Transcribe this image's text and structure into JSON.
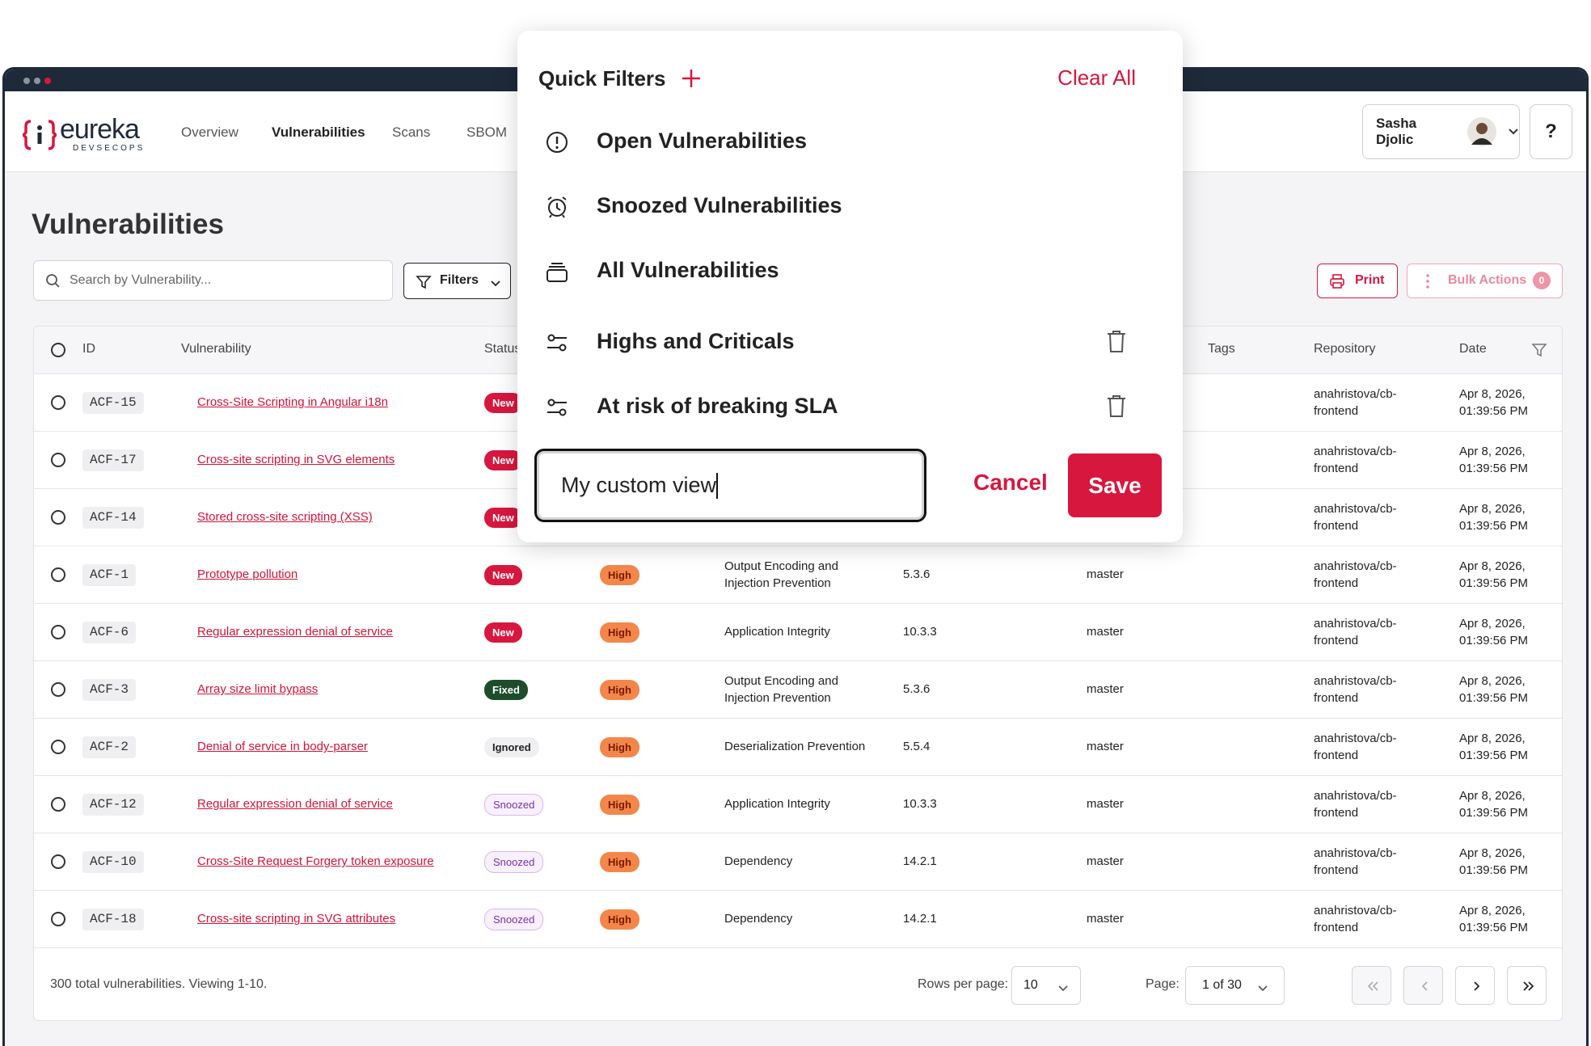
{
  "nav": {
    "logo": "eureka",
    "logo_sub": "DEVSECOPS",
    "links": [
      "Overview",
      "Vulnerabilities",
      "Scans",
      "SBOM"
    ],
    "active_link": 1,
    "user": "Sasha Djolic",
    "help": "?"
  },
  "page": {
    "title": "Vulnerabilities",
    "search_placeholder": "Search by Vulnerability...",
    "filters": "Filters",
    "print": "Print",
    "bulk_actions": "Bulk Actions",
    "bulk_count": "0"
  },
  "table": {
    "headers": [
      "ID",
      "Vulnerability",
      "Status",
      "Tags",
      "Repository",
      "Date"
    ],
    "rows": [
      {
        "id": "ACF-15",
        "vulnerability": "Cross-Site Scripting in Angular i18n",
        "status": "New",
        "repository": "anahristova/cb-frontend",
        "date": "Apr 8, 2026, 01:39:56 PM"
      },
      {
        "id": "ACF-17",
        "vulnerability": "Cross-site scripting in SVG elements",
        "status": "New",
        "repository": "anahristova/cb-frontend",
        "date": "Apr 8, 2026, 01:39:56 PM"
      },
      {
        "id": "ACF-14",
        "vulnerability": "Stored cross-site scripting (XSS)",
        "status": "New",
        "repository": "anahristova/cb-frontend",
        "date": "Apr 8, 2026, 01:39:56 PM"
      },
      {
        "id": "ACF-1",
        "vulnerability": "Prototype pollution",
        "status": "New",
        "severity": "High",
        "category": "Output Encoding and Injection Prevention",
        "version": "5.3.6",
        "branch": "master",
        "repository": "anahristova/cb-frontend",
        "date": "Apr 8, 2026, 01:39:56 PM"
      },
      {
        "id": "ACF-6",
        "vulnerability": "Regular expression denial of service",
        "status": "New",
        "severity": "High",
        "category": "Application Integrity",
        "version": "10.3.3",
        "branch": "master",
        "repository": "anahristova/cb-frontend",
        "date": "Apr 8, 2026, 01:39:56 PM"
      },
      {
        "id": "ACF-3",
        "vulnerability": "Array size limit bypass",
        "status": "Fixed",
        "severity": "High",
        "category": "Output Encoding and Injection Prevention",
        "version": "5.3.6",
        "branch": "master",
        "repository": "anahristova/cb-frontend",
        "date": "Apr 8, 2026, 01:39:56 PM"
      },
      {
        "id": "ACF-2",
        "vulnerability": "Denial of service in body-parser",
        "status": "Ignored",
        "severity": "High",
        "category": "Deserialization Prevention",
        "version": "5.5.4",
        "branch": "master",
        "repository": "anahristova/cb-frontend",
        "date": "Apr 8, 2026, 01:39:56 PM"
      },
      {
        "id": "ACF-12",
        "vulnerability": "Regular expression denial of service",
        "status": "Snoozed",
        "severity": "High",
        "category": "Application Integrity",
        "version": "10.3.3",
        "branch": "master",
        "repository": "anahristova/cb-frontend",
        "date": "Apr 8, 2026, 01:39:56 PM"
      },
      {
        "id": "ACF-10",
        "vulnerability": "Cross-Site Request Forgery token exposure",
        "status": "Snoozed",
        "severity": "High",
        "category": "Dependency",
        "version": "14.2.1",
        "branch": "master",
        "repository": "anahristova/cb-frontend",
        "date": "Apr 8, 2026, 01:39:56 PM"
      },
      {
        "id": "ACF-18",
        "vulnerability": "Cross-site scripting in SVG attributes",
        "status": "Snoozed",
        "severity": "High",
        "category": "Dependency",
        "version": "14.2.1",
        "branch": "master",
        "repository": "anahristova/cb-frontend",
        "date": "Apr 8, 2026, 01:39:56 PM"
      }
    ]
  },
  "footer": {
    "summary": "300 total vulnerabilities. Viewing 1-10.",
    "rows_per_page_label": "Rows per page:",
    "rows_per_page": "10",
    "page_label": "Page:",
    "page": "1 of 30"
  },
  "popup": {
    "title": "Quick Filters",
    "clear_all": "Clear All",
    "items": [
      {
        "label": "Open Vulnerabilities",
        "deletable": false
      },
      {
        "label": "Snoozed Vulnerabilities",
        "deletable": false
      },
      {
        "label": "All Vulnerabilities",
        "deletable": false
      },
      {
        "label": "Highs and Criticals",
        "deletable": true
      },
      {
        "label": "At risk of breaking SLA",
        "deletable": true
      }
    ],
    "input_value": "My custom view",
    "cancel": "Cancel",
    "save": "Save"
  }
}
